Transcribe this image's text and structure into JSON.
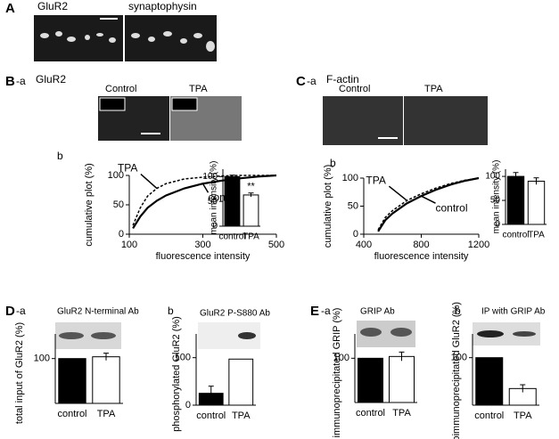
{
  "panels": {
    "A": "A",
    "A_left": "GluR2",
    "A_right": "synaptophysin",
    "B": "B",
    "B_a": "-a",
    "B_title": "GluR2",
    "B_control": "Control",
    "B_tpa": "TPA",
    "B_b": "b",
    "C": "C",
    "C_a": "-a",
    "C_title": "F-actin",
    "C_control": "Control",
    "C_tpa": "TPA",
    "C_b": "b",
    "D": "D",
    "D_a": "-a",
    "D_b": "b",
    "E": "E",
    "E_a": "-a",
    "E_b": "b"
  },
  "chart_data": [
    {
      "type": "line",
      "ylabel": "cumulative plot (%)",
      "xlabel": "fluorescence intensity",
      "xlim": [
        100,
        500
      ],
      "ylim": [
        0,
        100
      ],
      "xticks": [
        100,
        300,
        500
      ],
      "yticks": [
        0,
        50,
        100
      ],
      "x": [
        110,
        130,
        150,
        175,
        200,
        250,
        300,
        350,
        400,
        450,
        500
      ],
      "series": [
        {
          "name": "TPA",
          "color": "#000000",
          "dashed": true,
          "values": [
            15,
            45,
            65,
            78,
            86,
            94,
            97,
            99,
            100,
            100,
            100
          ]
        },
        {
          "name": "control",
          "color": "#000000",
          "dashed": false,
          "values": [
            10,
            30,
            45,
            57,
            66,
            78,
            86,
            91,
            95,
            98,
            100
          ]
        }
      ]
    },
    {
      "type": "bar",
      "ylabel": "mean intensity (%)",
      "categories": [
        "control",
        "TPA"
      ],
      "values": [
        100,
        63
      ],
      "errors": [
        3,
        4
      ],
      "colors": [
        "#000000",
        "#ffffff"
      ],
      "ylim": [
        0,
        115
      ],
      "yticks": [
        0,
        50,
        100
      ],
      "annotations": [
        "**"
      ]
    },
    {
      "type": "line",
      "ylabel": "cumulative plot (%)",
      "xlabel": "fluorescence intensity",
      "xlim": [
        400,
        1200
      ],
      "ylim": [
        0,
        100
      ],
      "xticks": [
        400,
        800,
        1200
      ],
      "yticks": [
        0,
        50,
        100
      ],
      "x": [
        500,
        550,
        600,
        700,
        800,
        900,
        1000,
        1100,
        1200
      ],
      "series": [
        {
          "name": "TPA",
          "color": "#000000",
          "dashed": true,
          "values": [
            8,
            30,
            42,
            60,
            72,
            82,
            90,
            96,
            100
          ]
        },
        {
          "name": "control",
          "color": "#000000",
          "dashed": false,
          "values": [
            5,
            25,
            37,
            55,
            68,
            79,
            88,
            95,
            100
          ]
        }
      ]
    },
    {
      "type": "bar",
      "ylabel": "mean intensity (%)",
      "categories": [
        "control",
        "TPA"
      ],
      "values": [
        100,
        90
      ],
      "errors": [
        8,
        7
      ],
      "colors": [
        "#000000",
        "#ffffff"
      ],
      "ylim": [
        0,
        115
      ],
      "yticks": [
        0,
        50,
        100
      ]
    },
    {
      "type": "bar",
      "title": "GluR2 N-terminal Ab",
      "ylabel": "total input of GluR2 (%)",
      "categories": [
        "control",
        "TPA"
      ],
      "values": [
        100,
        104
      ],
      "errors": [
        null,
        8
      ],
      "colors": [
        "#000000",
        "#ffffff"
      ],
      "ylim": [
        0,
        155
      ],
      "yticks": [
        100
      ]
    },
    {
      "type": "bar",
      "title": "GluR2 P-S880 Ab",
      "ylabel": "phosphorylated GluR2 (%)",
      "categories": [
        "control",
        "TPA"
      ],
      "values": [
        25,
        97
      ],
      "errors": [
        15,
        null
      ],
      "colors": [
        "#000000",
        "#ffffff"
      ],
      "ylim": [
        0,
        150
      ],
      "yticks": [
        0,
        100
      ]
    },
    {
      "type": "bar",
      "title": "GRIP Ab",
      "ylabel": "immunoprecipitated GRIP (%)",
      "categories": [
        "control",
        "TPA"
      ],
      "values": [
        100,
        104
      ],
      "errors": [
        null,
        10
      ],
      "colors": [
        "#000000",
        "#ffffff"
      ],
      "ylim": [
        0,
        155
      ],
      "yticks": [
        100
      ]
    },
    {
      "type": "bar",
      "title": "IP with GRIP Ab",
      "ylabel": "coimmunoprecipitated GluR2 (%)",
      "categories": [
        "control",
        "TPA"
      ],
      "values": [
        100,
        35
      ],
      "errors": [
        null,
        8
      ],
      "colors": [
        "#000000",
        "#ffffff"
      ],
      "ylim": [
        0,
        150
      ],
      "yticks": [
        100
      ]
    }
  ]
}
